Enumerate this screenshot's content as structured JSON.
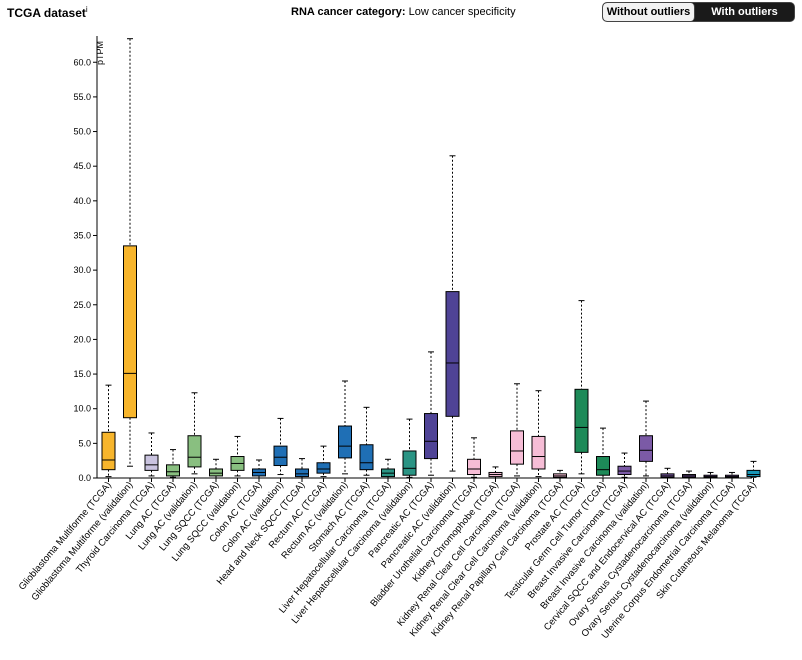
{
  "header": {
    "dataset_title": "TCGA dataset",
    "dataset_marker": "i",
    "category_label": "RNA cancer category:",
    "category_value": "Low cancer specificity",
    "toggle_without": "Without outliers",
    "toggle_with": "With outliers",
    "active_toggle": "With outliers"
  },
  "chart_data": {
    "type": "box",
    "ylabel": "pTPM",
    "ylim": [
      0,
      63.5
    ],
    "yticks": [
      0.0,
      5.0,
      10.0,
      15.0,
      20.0,
      25.0,
      30.0,
      35.0,
      40.0,
      45.0,
      50.0,
      55.0,
      60.0
    ],
    "ytick_labels": [
      "0.0",
      "5.0",
      "10.0",
      "15.0",
      "20.0",
      "25.0",
      "30.0",
      "35.0",
      "40.0",
      "45.0",
      "50.0",
      "55.0",
      "60.0"
    ],
    "grid": false,
    "categories": [
      "Glioblastoma Multiforme (TCGA)",
      "Glioblastoma Multiforme (validation)",
      "Thyroid Carcinoma (TCGA)",
      "Lung AC (TCGA)",
      "Lung AC (validation)",
      "Lung SQCC (TCGA)",
      "Lung SQCC (validation)",
      "Colon AC (TCGA)",
      "Colon AC (validation)",
      "Head and Neck SQCC (TCGA)",
      "Rectum AC (TCGA)",
      "Rectum AC (validation)",
      "Stomach AC (TCGA)",
      "Liver Hepatocellular Carcinoma (TCGA)",
      "Liver Hepatocellular Carcinoma (validation)",
      "Pancreatic AC (TCGA)",
      "Pancreatic AC (validation)",
      "Bladder Urothelial Carcinoma (TCGA)",
      "Kidney Chromophobe (TCGA)",
      "Kidney Renal Clear Cell Carcinoma (TCGA)",
      "Kidney Renal Clear Cell Carcinoma (validation)",
      "Kidney Renal Papillary Cell Carcinoma (TCGA)",
      "Prostate AC (TCGA)",
      "Testicular Germ Cell Tumor (TCGA)",
      "Breast Invasive Carcinoma (TCGA)",
      "Breast Invasive Carcinoma (validation)",
      "Cervical SQCC and Endocervical AC (TCGA)",
      "Ovary Serous Cystadenocarcinoma (TCGA)",
      "Ovary Serous Cystadenocarcinoma (validation)",
      "Uterine Corpus Endometrial Carcinoma (TCGA)",
      "Skin Cutaneous Melanoma (TCGA)"
    ],
    "boxes": [
      {
        "min": 0.2,
        "q1": 1.2,
        "median": 2.6,
        "q3": 6.6,
        "max": 13.4,
        "color": "#f7b52c"
      },
      {
        "min": 1.7,
        "q1": 8.7,
        "median": 15.1,
        "q3": 33.5,
        "max": 63.4,
        "color": "#f7b52c"
      },
      {
        "min": 0.3,
        "q1": 1.1,
        "median": 1.9,
        "q3": 3.3,
        "max": 6.5,
        "color": "#c9c3df"
      },
      {
        "min": 0.1,
        "q1": 0.3,
        "median": 0.9,
        "q3": 1.9,
        "max": 4.1,
        "color": "#89bf80"
      },
      {
        "min": 0.6,
        "q1": 1.6,
        "median": 3.0,
        "q3": 6.1,
        "max": 12.3,
        "color": "#89bf80"
      },
      {
        "min": 0.0,
        "q1": 0.3,
        "median": 0.7,
        "q3": 1.3,
        "max": 2.7,
        "color": "#89bf80"
      },
      {
        "min": 0.3,
        "q1": 1.1,
        "median": 2.1,
        "q3": 3.1,
        "max": 6.0,
        "color": "#89bf80"
      },
      {
        "min": 0.0,
        "q1": 0.3,
        "median": 0.8,
        "q3": 1.3,
        "max": 2.6,
        "color": "#1f6fb5"
      },
      {
        "min": 0.5,
        "q1": 1.8,
        "median": 3.0,
        "q3": 4.6,
        "max": 8.6,
        "color": "#1f6fb5"
      },
      {
        "min": 0.0,
        "q1": 0.2,
        "median": 0.6,
        "q3": 1.3,
        "max": 2.8,
        "color": "#1f6fb5"
      },
      {
        "min": 0.2,
        "q1": 0.7,
        "median": 1.3,
        "q3": 2.2,
        "max": 4.6,
        "color": "#1f6fb5"
      },
      {
        "min": 0.6,
        "q1": 2.9,
        "median": 4.6,
        "q3": 7.5,
        "max": 14.0,
        "color": "#1f6fb5"
      },
      {
        "min": 0.4,
        "q1": 1.2,
        "median": 2.2,
        "q3": 4.8,
        "max": 10.2,
        "color": "#1f6fb5"
      },
      {
        "min": 0.0,
        "q1": 0.2,
        "median": 0.7,
        "q3": 1.3,
        "max": 2.7,
        "color": "#2a9484"
      },
      {
        "min": 0.1,
        "q1": 0.4,
        "median": 1.4,
        "q3": 3.9,
        "max": 8.5,
        "color": "#2a9484"
      },
      {
        "min": 0.4,
        "q1": 2.8,
        "median": 5.3,
        "q3": 9.3,
        "max": 18.2,
        "color": "#4f4396"
      },
      {
        "min": 1.0,
        "q1": 8.9,
        "median": 16.6,
        "q3": 26.9,
        "max": 46.5,
        "color": "#4f4396"
      },
      {
        "min": 0.1,
        "q1": 0.5,
        "median": 1.3,
        "q3": 2.7,
        "max": 5.8,
        "color": "#f6bdd6"
      },
      {
        "min": 0.0,
        "q1": 0.2,
        "median": 0.5,
        "q3": 0.8,
        "max": 1.6,
        "color": "#f6bdd6"
      },
      {
        "min": 0.3,
        "q1": 2.0,
        "median": 3.9,
        "q3": 6.8,
        "max": 13.6,
        "color": "#f6bdd6"
      },
      {
        "min": 0.2,
        "q1": 1.3,
        "median": 3.1,
        "q3": 6.0,
        "max": 12.6,
        "color": "#f6bdd6"
      },
      {
        "min": 0.0,
        "q1": 0.1,
        "median": 0.3,
        "q3": 0.6,
        "max": 1.1,
        "color": "#f6bdd6"
      },
      {
        "min": 0.6,
        "q1": 3.7,
        "median": 7.3,
        "q3": 12.8,
        "max": 25.6,
        "color": "#1d8a58"
      },
      {
        "min": 0.0,
        "q1": 0.4,
        "median": 1.2,
        "q3": 3.1,
        "max": 7.2,
        "color": "#1d8a58"
      },
      {
        "min": 0.1,
        "q1": 0.5,
        "median": 1.0,
        "q3": 1.7,
        "max": 3.6,
        "color": "#7b5aa6"
      },
      {
        "min": 0.3,
        "q1": 2.4,
        "median": 4.0,
        "q3": 6.1,
        "max": 11.1,
        "color": "#7b5aa6"
      },
      {
        "min": 0.0,
        "q1": 0.1,
        "median": 0.3,
        "q3": 0.6,
        "max": 1.4,
        "color": "#7b5aa6"
      },
      {
        "min": 0.0,
        "q1": 0.1,
        "median": 0.3,
        "q3": 0.5,
        "max": 1.0,
        "color": "#7b5aa6"
      },
      {
        "min": 0.0,
        "q1": 0.1,
        "median": 0.2,
        "q3": 0.4,
        "max": 0.8,
        "color": "#7b5aa6"
      },
      {
        "min": 0.0,
        "q1": 0.1,
        "median": 0.2,
        "q3": 0.4,
        "max": 0.8,
        "color": "#7b5aa6"
      },
      {
        "min": 0.1,
        "q1": 0.2,
        "median": 0.5,
        "q3": 1.1,
        "max": 2.4,
        "color": "#1896b6"
      }
    ]
  }
}
